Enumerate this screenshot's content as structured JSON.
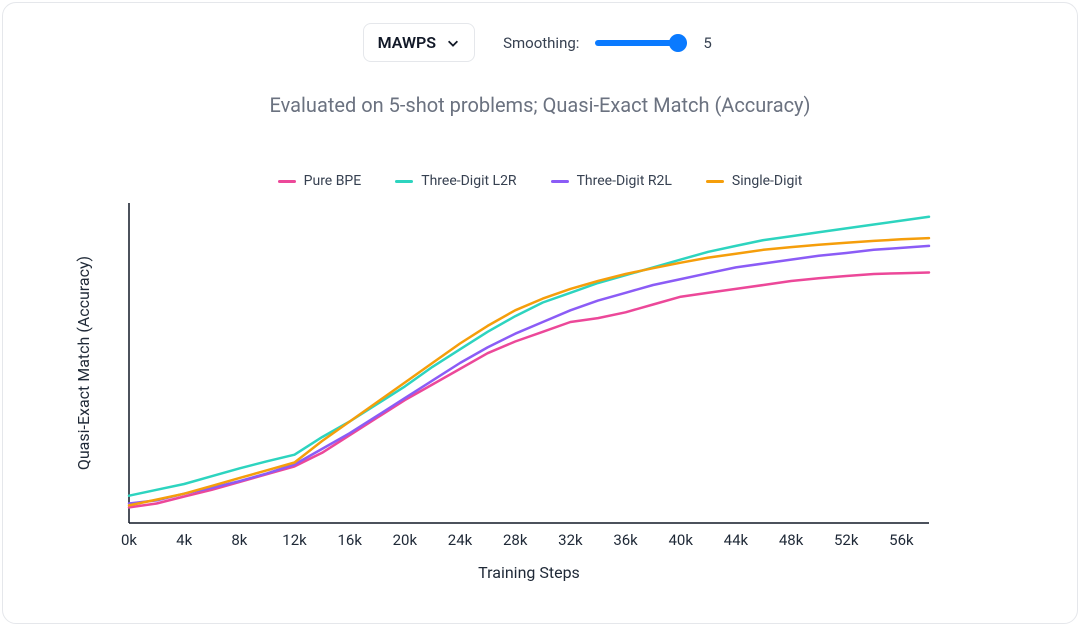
{
  "controls": {
    "select_label": "MAWPS",
    "smoothing_label": "Smoothing:",
    "smoothing_value": "5",
    "slider_min": 0,
    "slider_max": 5,
    "slider_value": 5,
    "slider_color": "#0a7aff"
  },
  "subtitle": "Evaluated on 5-shot problems; Quasi-Exact Match (Accuracy)",
  "chart": {
    "type": "line",
    "xlabel": "Training Steps",
    "ylabel": "Quasi-Exact Match (Accuracy)",
    "label_fontsize": 16,
    "tick_fontsize": 15,
    "subtitle_fontsize": 20,
    "legend_fontsize": 14,
    "background_color": "#ffffff",
    "card_border_color": "#e5e7eb",
    "axis_color": "#111827",
    "xlim": [
      0,
      58000
    ],
    "ylim": [
      0.06,
      0.88
    ],
    "line_width": 2.5,
    "xticks": [
      {
        "v": 0,
        "label": "0k"
      },
      {
        "v": 4000,
        "label": "4k"
      },
      {
        "v": 8000,
        "label": "8k"
      },
      {
        "v": 12000,
        "label": "12k"
      },
      {
        "v": 16000,
        "label": "16k"
      },
      {
        "v": 20000,
        "label": "20k"
      },
      {
        "v": 24000,
        "label": "24k"
      },
      {
        "v": 28000,
        "label": "28k"
      },
      {
        "v": 32000,
        "label": "32k"
      },
      {
        "v": 36000,
        "label": "36k"
      },
      {
        "v": 40000,
        "label": "40k"
      },
      {
        "v": 44000,
        "label": "44k"
      },
      {
        "v": 48000,
        "label": "48k"
      },
      {
        "v": 52000,
        "label": "52k"
      },
      {
        "v": 56000,
        "label": "56k"
      }
    ],
    "series": [
      {
        "name": "Pure BPE",
        "color": "#ec4899",
        "x": [
          0,
          2000,
          4000,
          6000,
          8000,
          10000,
          12000,
          14000,
          16000,
          18000,
          20000,
          22000,
          24000,
          26000,
          28000,
          30000,
          32000,
          34000,
          36000,
          38000,
          40000,
          42000,
          44000,
          46000,
          48000,
          50000,
          52000,
          54000,
          56000,
          58000
        ],
        "y": [
          0.1,
          0.11,
          0.128,
          0.145,
          0.165,
          0.185,
          0.205,
          0.24,
          0.285,
          0.33,
          0.375,
          0.415,
          0.455,
          0.495,
          0.525,
          0.55,
          0.575,
          0.585,
          0.6,
          0.62,
          0.64,
          0.65,
          0.66,
          0.67,
          0.68,
          0.687,
          0.693,
          0.698,
          0.7,
          0.702
        ]
      },
      {
        "name": "Three-Digit L2R",
        "color": "#2dd4bf",
        "x": [
          0,
          2000,
          4000,
          6000,
          8000,
          10000,
          12000,
          14000,
          16000,
          18000,
          20000,
          22000,
          24000,
          26000,
          28000,
          30000,
          32000,
          34000,
          36000,
          38000,
          40000,
          42000,
          44000,
          46000,
          48000,
          50000,
          52000,
          54000,
          56000,
          58000
        ],
        "y": [
          0.13,
          0.145,
          0.16,
          0.18,
          0.2,
          0.218,
          0.235,
          0.28,
          0.32,
          0.365,
          0.41,
          0.46,
          0.505,
          0.55,
          0.59,
          0.625,
          0.65,
          0.675,
          0.695,
          0.715,
          0.735,
          0.755,
          0.77,
          0.785,
          0.795,
          0.805,
          0.815,
          0.825,
          0.835,
          0.845
        ]
      },
      {
        "name": "Three-Digit R2L",
        "color": "#8b5cf6",
        "x": [
          0,
          2000,
          4000,
          6000,
          8000,
          10000,
          12000,
          14000,
          16000,
          18000,
          20000,
          22000,
          24000,
          26000,
          28000,
          30000,
          32000,
          34000,
          36000,
          38000,
          40000,
          42000,
          44000,
          46000,
          48000,
          50000,
          52000,
          54000,
          56000,
          58000
        ],
        "y": [
          0.11,
          0.118,
          0.135,
          0.15,
          0.167,
          0.187,
          0.21,
          0.25,
          0.29,
          0.335,
          0.38,
          0.425,
          0.47,
          0.51,
          0.545,
          0.575,
          0.605,
          0.63,
          0.65,
          0.67,
          0.685,
          0.7,
          0.715,
          0.725,
          0.735,
          0.745,
          0.752,
          0.76,
          0.765,
          0.77
        ]
      },
      {
        "name": "Single-Digit",
        "color": "#f59e0b",
        "x": [
          0,
          2000,
          4000,
          6000,
          8000,
          10000,
          12000,
          14000,
          16000,
          18000,
          20000,
          22000,
          24000,
          26000,
          28000,
          30000,
          32000,
          34000,
          36000,
          38000,
          40000,
          42000,
          44000,
          46000,
          48000,
          50000,
          52000,
          54000,
          56000,
          58000
        ],
        "y": [
          0.105,
          0.12,
          0.135,
          0.155,
          0.175,
          0.195,
          0.215,
          0.27,
          0.32,
          0.37,
          0.42,
          0.47,
          0.52,
          0.565,
          0.605,
          0.635,
          0.66,
          0.68,
          0.698,
          0.713,
          0.727,
          0.74,
          0.75,
          0.76,
          0.767,
          0.773,
          0.778,
          0.783,
          0.787,
          0.79
        ]
      }
    ]
  }
}
